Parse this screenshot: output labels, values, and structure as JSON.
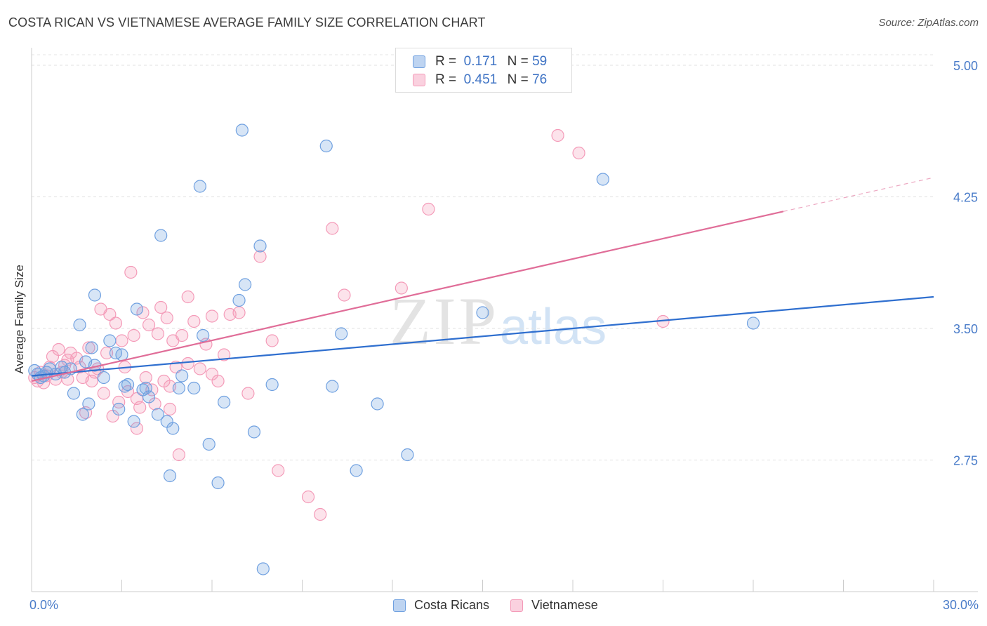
{
  "title": "COSTA RICAN VS VIETNAMESE AVERAGE FAMILY SIZE CORRELATION CHART",
  "source": "Source: ZipAtlas.com",
  "watermark": {
    "zip": "ZIP",
    "atlas": "atlas"
  },
  "legend_top": [
    {
      "r_label": "R =",
      "r_value": "0.171",
      "n_label": "N =",
      "n_value": "59",
      "color": "#6fa0e0"
    },
    {
      "r_label": "R =",
      "r_value": "0.451",
      "n_label": "N =",
      "n_value": "76",
      "color": "#f49ab8"
    }
  ],
  "legend_bottom": [
    {
      "label": "Costa Ricans",
      "color": "#6fa0e0"
    },
    {
      "label": "Vietnamese",
      "color": "#f49ab8"
    }
  ],
  "chart_data": {
    "type": "scatter",
    "title": "COSTA RICAN VS VIETNAMESE AVERAGE FAMILY SIZE CORRELATION CHART",
    "xlabel": "",
    "ylabel": "Average Family Size",
    "xlim": [
      0,
      30
    ],
    "ylim": [
      2.0,
      5.1
    ],
    "x_tick_labels": [
      "0.0%",
      "30.0%"
    ],
    "y_ticks": [
      2.75,
      3.5,
      4.25,
      5.0
    ],
    "y_tick_labels": [
      "2.75",
      "3.50",
      "4.25",
      "5.00"
    ],
    "grid": true,
    "legend_position": "top-center",
    "series": [
      {
        "name": "Costa Ricans",
        "color": "#6fa0e0",
        "line_color": "#2f6fcf",
        "trend": {
          "x0": 0.0,
          "y0": 3.23,
          "x1": 30.0,
          "y1": 3.68,
          "dash_from": 30.0
        },
        "points": [
          [
            0.1,
            3.26
          ],
          [
            0.2,
            3.24
          ],
          [
            0.3,
            3.22
          ],
          [
            0.5,
            3.25
          ],
          [
            0.6,
            3.27
          ],
          [
            0.8,
            3.24
          ],
          [
            1.0,
            3.28
          ],
          [
            1.1,
            3.25
          ],
          [
            1.4,
            3.13
          ],
          [
            1.6,
            3.52
          ],
          [
            1.7,
            3.01
          ],
          [
            1.8,
            3.31
          ],
          [
            1.9,
            3.07
          ],
          [
            2.0,
            3.39
          ],
          [
            2.1,
            3.29
          ],
          [
            2.1,
            3.69
          ],
          [
            2.4,
            3.22
          ],
          [
            2.6,
            3.43
          ],
          [
            2.8,
            3.36
          ],
          [
            3.0,
            3.35
          ],
          [
            3.1,
            3.17
          ],
          [
            3.2,
            3.18
          ],
          [
            3.4,
            2.97
          ],
          [
            3.5,
            3.61
          ],
          [
            3.7,
            3.15
          ],
          [
            3.8,
            3.16
          ],
          [
            3.9,
            3.11
          ],
          [
            4.2,
            3.01
          ],
          [
            4.3,
            4.03
          ],
          [
            4.5,
            2.97
          ],
          [
            4.6,
            2.66
          ],
          [
            4.7,
            2.93
          ],
          [
            4.9,
            3.16
          ],
          [
            5.0,
            3.23
          ],
          [
            5.4,
            3.16
          ],
          [
            5.6,
            4.31
          ],
          [
            5.7,
            3.46
          ],
          [
            5.9,
            2.84
          ],
          [
            6.2,
            2.62
          ],
          [
            6.4,
            3.08
          ],
          [
            6.9,
            3.66
          ],
          [
            7.0,
            4.63
          ],
          [
            7.1,
            3.75
          ],
          [
            7.4,
            2.91
          ],
          [
            7.6,
            3.97
          ],
          [
            7.7,
            2.13
          ],
          [
            8.0,
            3.18
          ],
          [
            9.8,
            4.54
          ],
          [
            10.0,
            3.17
          ],
          [
            10.3,
            3.47
          ],
          [
            10.8,
            2.69
          ],
          [
            11.5,
            3.07
          ],
          [
            12.5,
            2.78
          ],
          [
            15.0,
            3.59
          ],
          [
            19.0,
            4.35
          ],
          [
            24.0,
            3.53
          ],
          [
            0.4,
            3.23
          ],
          [
            1.3,
            3.27
          ],
          [
            2.9,
            3.04
          ]
        ]
      },
      {
        "name": "Vietnamese",
        "color": "#f49ab8",
        "line_color": "#e06d98",
        "trend": {
          "x0": 0.0,
          "y0": 3.2,
          "x1": 30.0,
          "y1": 4.36,
          "dash_from": 25.0
        },
        "points": [
          [
            0.1,
            3.22
          ],
          [
            0.2,
            3.2
          ],
          [
            0.3,
            3.25
          ],
          [
            0.4,
            3.19
          ],
          [
            0.5,
            3.23
          ],
          [
            0.6,
            3.28
          ],
          [
            0.7,
            3.34
          ],
          [
            0.8,
            3.21
          ],
          [
            0.9,
            3.38
          ],
          [
            1.0,
            3.25
          ],
          [
            1.1,
            3.29
          ],
          [
            1.2,
            3.32
          ],
          [
            1.3,
            3.36
          ],
          [
            1.5,
            3.33
          ],
          [
            1.6,
            3.28
          ],
          [
            1.7,
            3.22
          ],
          [
            1.8,
            3.02
          ],
          [
            1.9,
            3.39
          ],
          [
            2.0,
            3.2
          ],
          [
            2.1,
            3.25
          ],
          [
            2.2,
            3.27
          ],
          [
            2.3,
            3.61
          ],
          [
            2.4,
            3.13
          ],
          [
            2.5,
            3.36
          ],
          [
            2.6,
            3.58
          ],
          [
            2.8,
            3.53
          ],
          [
            2.9,
            3.08
          ],
          [
            3.0,
            3.43
          ],
          [
            3.2,
            3.14
          ],
          [
            3.3,
            3.82
          ],
          [
            3.4,
            3.46
          ],
          [
            3.5,
            2.93
          ],
          [
            3.6,
            3.05
          ],
          [
            3.7,
            3.59
          ],
          [
            3.8,
            3.22
          ],
          [
            3.9,
            3.52
          ],
          [
            4.0,
            3.15
          ],
          [
            4.1,
            3.07
          ],
          [
            4.2,
            3.47
          ],
          [
            4.3,
            3.62
          ],
          [
            4.4,
            3.2
          ],
          [
            4.5,
            3.56
          ],
          [
            4.6,
            3.04
          ],
          [
            4.7,
            3.43
          ],
          [
            4.8,
            3.28
          ],
          [
            4.9,
            2.78
          ],
          [
            5.0,
            3.46
          ],
          [
            5.2,
            3.68
          ],
          [
            5.4,
            3.54
          ],
          [
            5.6,
            3.27
          ],
          [
            5.8,
            3.41
          ],
          [
            6.0,
            3.57
          ],
          [
            6.2,
            3.2
          ],
          [
            6.4,
            3.35
          ],
          [
            6.6,
            3.58
          ],
          [
            6.9,
            3.59
          ],
          [
            7.2,
            3.13
          ],
          [
            7.6,
            3.91
          ],
          [
            8.0,
            3.43
          ],
          [
            8.2,
            2.69
          ],
          [
            9.2,
            2.54
          ],
          [
            9.6,
            2.44
          ],
          [
            10.0,
            4.07
          ],
          [
            10.4,
            3.69
          ],
          [
            12.3,
            3.73
          ],
          [
            13.2,
            4.18
          ],
          [
            17.5,
            4.6
          ],
          [
            18.2,
            4.5
          ],
          [
            21.0,
            3.54
          ],
          [
            1.2,
            3.21
          ],
          [
            2.7,
            3.0
          ],
          [
            3.1,
            3.28
          ],
          [
            4.6,
            3.17
          ],
          [
            5.2,
            3.3
          ],
          [
            6.0,
            3.24
          ],
          [
            3.5,
            3.1
          ]
        ]
      }
    ]
  }
}
